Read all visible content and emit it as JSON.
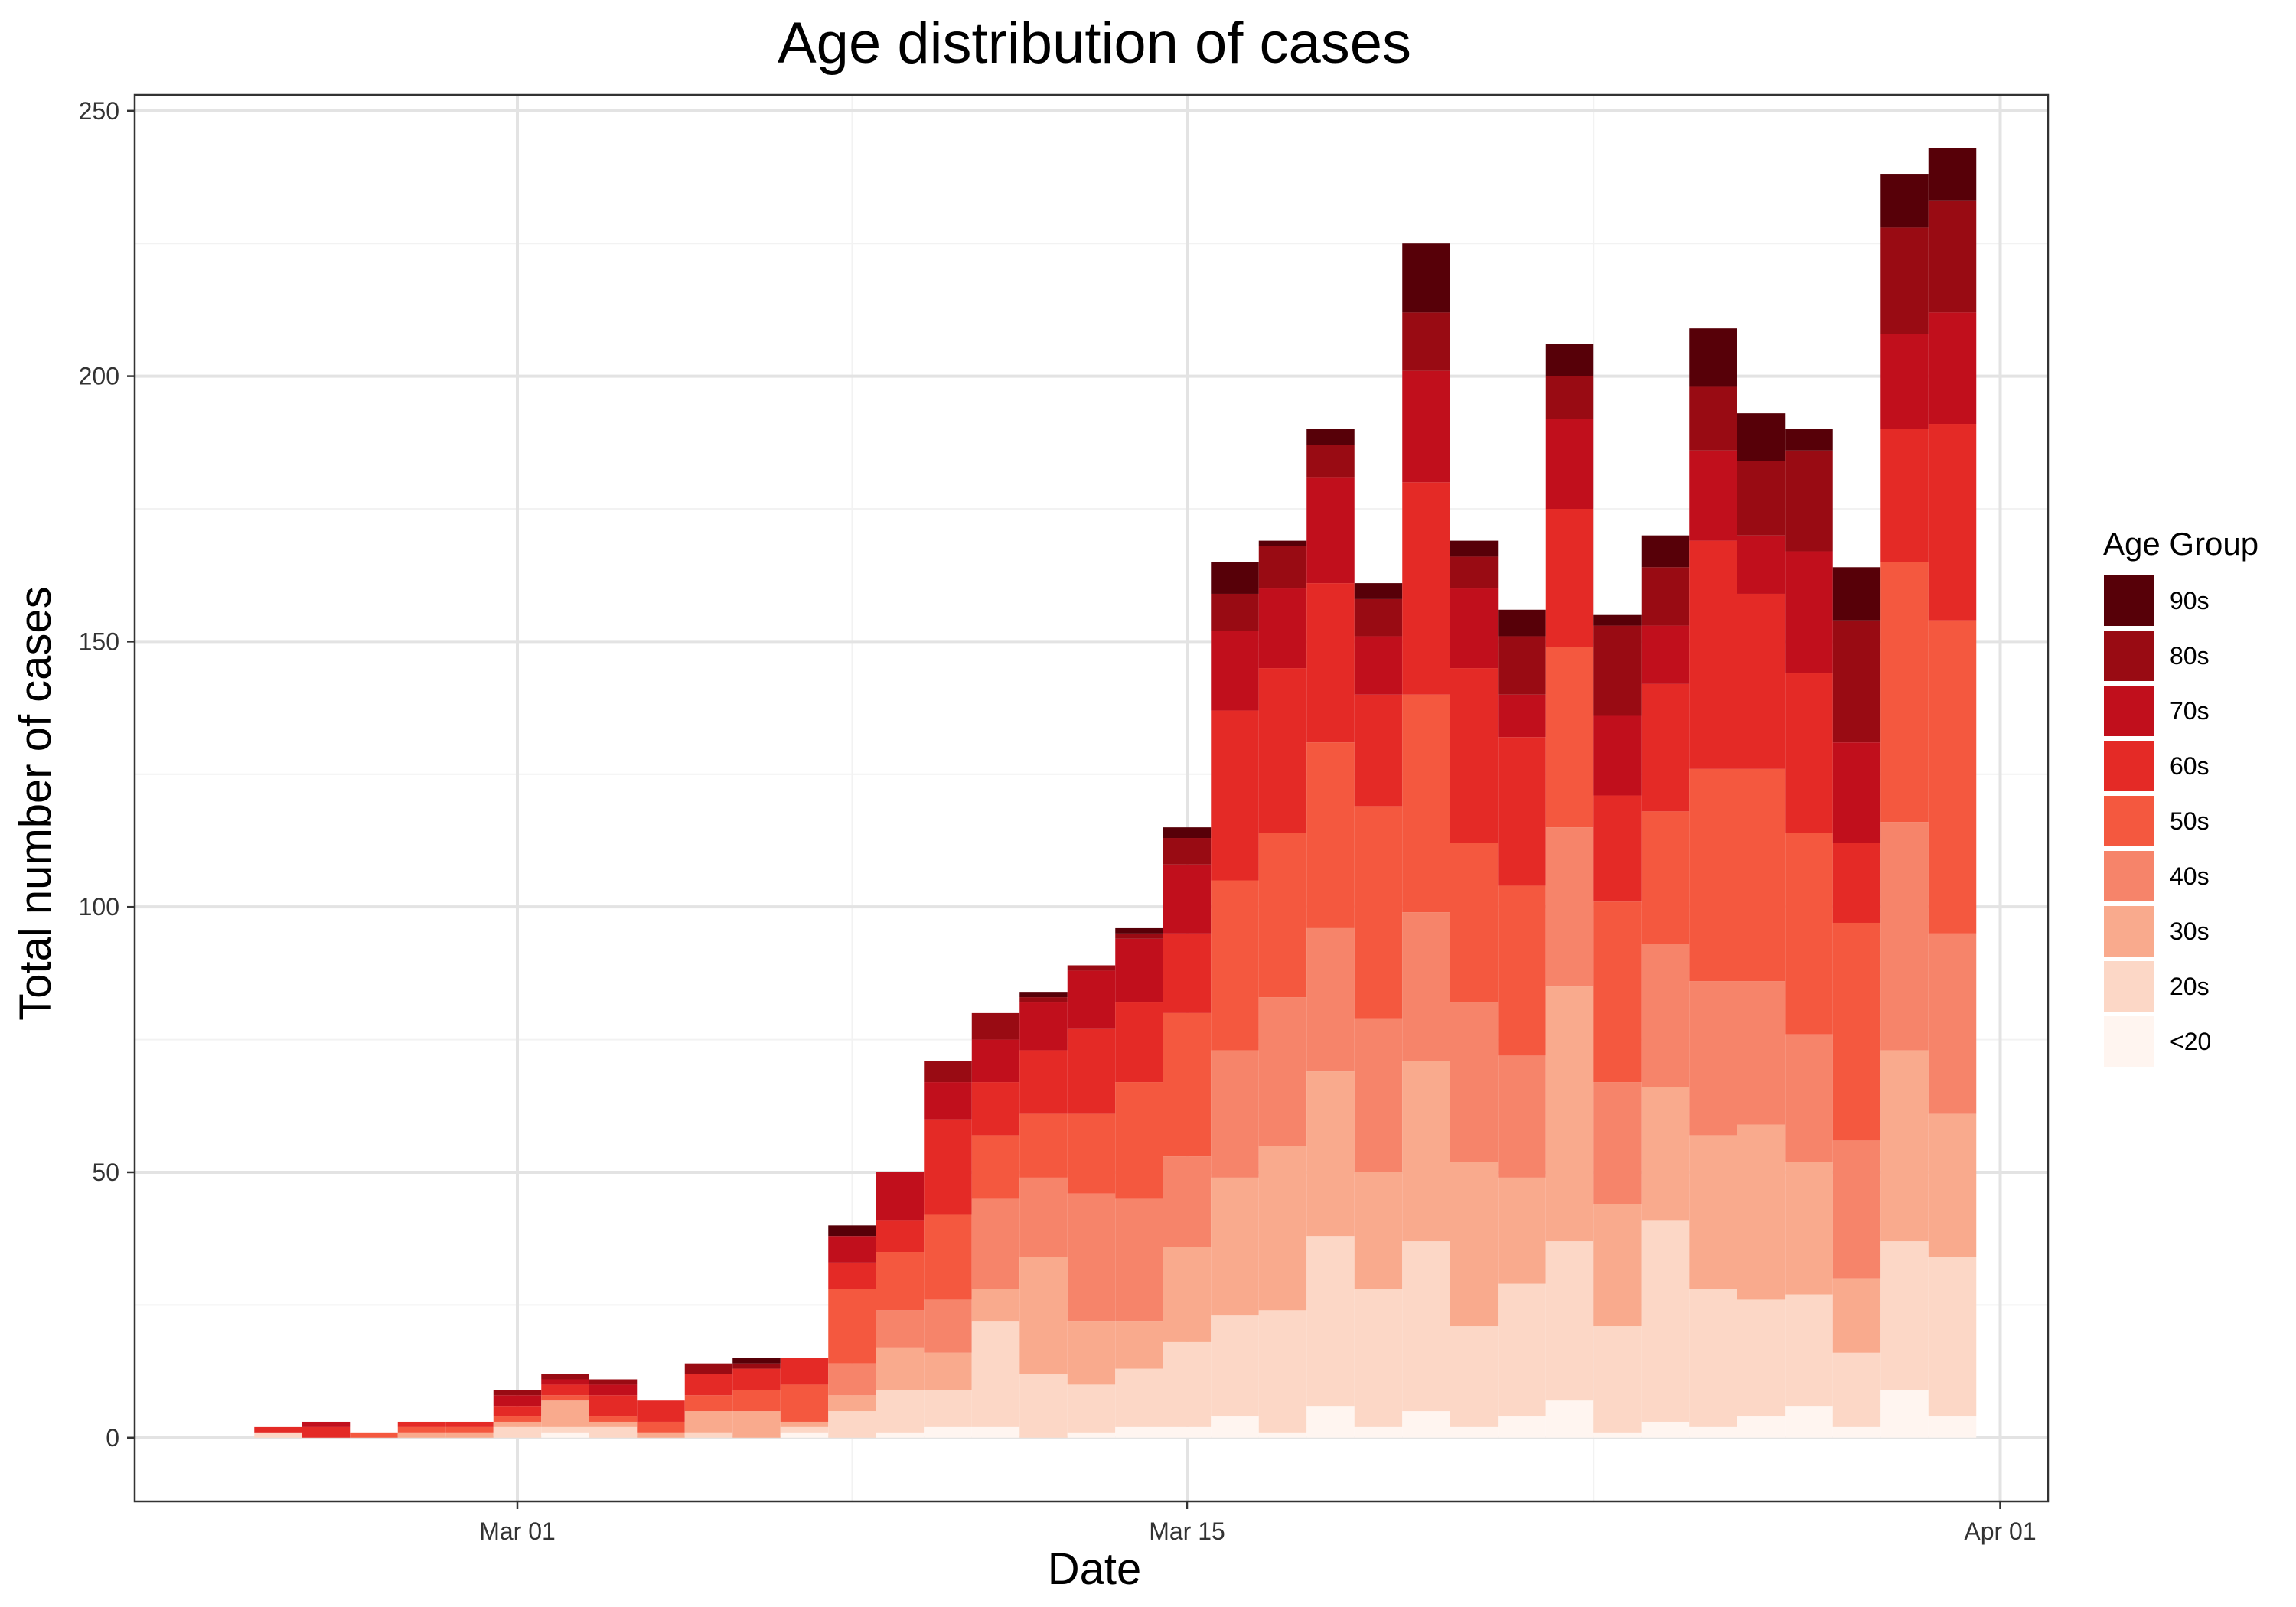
{
  "chart_data": {
    "type": "bar",
    "stacked": true,
    "title": "Age distribution of cases",
    "xlabel": "Date",
    "ylabel": "Total number of cases",
    "ylim": [
      -12,
      253
    ],
    "yticks": [
      0,
      50,
      100,
      150,
      200,
      250
    ],
    "xlim": [
      "2020-02-22",
      "2020-04-02"
    ],
    "xticks": [
      {
        "label": "Mar 01",
        "date": "2020-03-01"
      },
      {
        "label": "Mar 15",
        "date": "2020-03-15"
      },
      {
        "label": "Apr 01",
        "date": "2020-04-01"
      }
    ],
    "grid": true,
    "legend": {
      "title": "Age Group",
      "position": "right"
    },
    "dates": [
      "2020-02-25",
      "2020-02-26",
      "2020-02-27",
      "2020-02-28",
      "2020-02-29",
      "2020-03-01",
      "2020-03-02",
      "2020-03-03",
      "2020-03-04",
      "2020-03-05",
      "2020-03-06",
      "2020-03-07",
      "2020-03-08",
      "2020-03-09",
      "2020-03-10",
      "2020-03-11",
      "2020-03-12",
      "2020-03-13",
      "2020-03-14",
      "2020-03-15",
      "2020-03-16",
      "2020-03-17",
      "2020-03-18",
      "2020-03-19",
      "2020-03-20",
      "2020-03-21",
      "2020-03-22",
      "2020-03-23",
      "2020-03-24",
      "2020-03-25",
      "2020-03-26",
      "2020-03-27",
      "2020-03-28",
      "2020-03-29",
      "2020-03-30",
      "2020-03-31"
    ],
    "series": [
      {
        "name": "<20",
        "color": "#fff5f0",
        "values": [
          0,
          0,
          0,
          0,
          0,
          0,
          1,
          0,
          0,
          0,
          0,
          1,
          0,
          1,
          2,
          2,
          0,
          1,
          2,
          2,
          4,
          1,
          6,
          2,
          5,
          2,
          4,
          7,
          1,
          3,
          2,
          4,
          6,
          2,
          9,
          4
        ]
      },
      {
        "name": "20s",
        "color": "#fcd7c6",
        "values": [
          1,
          0,
          0,
          0,
          0,
          2,
          1,
          2,
          0,
          1,
          0,
          1,
          5,
          8,
          7,
          20,
          12,
          9,
          11,
          16,
          19,
          23,
          32,
          26,
          32,
          19,
          25,
          30,
          20,
          38,
          26,
          22,
          21,
          14,
          28,
          30
        ]
      },
      {
        "name": "30s",
        "color": "#f9aa8d",
        "values": [
          0,
          0,
          0,
          1,
          1,
          1,
          5,
          1,
          1,
          4,
          5,
          1,
          3,
          8,
          7,
          6,
          22,
          12,
          9,
          18,
          26,
          31,
          31,
          22,
          34,
          31,
          20,
          48,
          23,
          25,
          29,
          33,
          25,
          14,
          36,
          27
        ]
      },
      {
        "name": "40s",
        "color": "#f6846a",
        "values": [
          0,
          0,
          0,
          0,
          0,
          0,
          0,
          0,
          0,
          0,
          0,
          0,
          6,
          7,
          10,
          17,
          15,
          24,
          23,
          17,
          24,
          28,
          27,
          29,
          28,
          30,
          23,
          30,
          23,
          27,
          29,
          27,
          24,
          26,
          43,
          34
        ]
      },
      {
        "name": "50s",
        "color": "#f4583f",
        "values": [
          0,
          0,
          1,
          1,
          1,
          1,
          1,
          1,
          2,
          3,
          4,
          7,
          14,
          11,
          16,
          12,
          12,
          15,
          22,
          27,
          32,
          31,
          35,
          40,
          41,
          30,
          32,
          34,
          34,
          25,
          40,
          40,
          38,
          41,
          49,
          59
        ]
      },
      {
        "name": "60s",
        "color": "#e42a26",
        "values": [
          1,
          2,
          0,
          1,
          1,
          2,
          2,
          4,
          4,
          4,
          4,
          5,
          5,
          6,
          18,
          10,
          12,
          16,
          15,
          15,
          32,
          31,
          30,
          21,
          40,
          33,
          28,
          26,
          20,
          24,
          43,
          33,
          30,
          15,
          25,
          37
        ]
      },
      {
        "name": "70s",
        "color": "#c10f1c",
        "values": [
          0,
          1,
          0,
          0,
          0,
          2,
          1,
          2,
          0,
          0,
          0,
          0,
          5,
          9,
          7,
          8,
          9,
          11,
          12,
          13,
          15,
          15,
          20,
          11,
          21,
          15,
          8,
          17,
          15,
          11,
          17,
          11,
          23,
          19,
          18,
          21
        ]
      },
      {
        "name": "80s",
        "color": "#990b13",
        "values": [
          0,
          0,
          0,
          0,
          0,
          1,
          1,
          1,
          0,
          2,
          1,
          0,
          0,
          0,
          4,
          5,
          1,
          1,
          1,
          5,
          7,
          8,
          6,
          7,
          11,
          6,
          11,
          8,
          17,
          11,
          12,
          14,
          19,
          23,
          20,
          21
        ]
      },
      {
        "name": "90s",
        "color": "#570008",
        "values": [
          0,
          0,
          0,
          0,
          0,
          0,
          0,
          0,
          0,
          0,
          1,
          0,
          2,
          0,
          0,
          0,
          1,
          0,
          1,
          2,
          6,
          1,
          3,
          3,
          13,
          3,
          5,
          6,
          2,
          6,
          11,
          9,
          4,
          10,
          10,
          10
        ]
      }
    ]
  }
}
